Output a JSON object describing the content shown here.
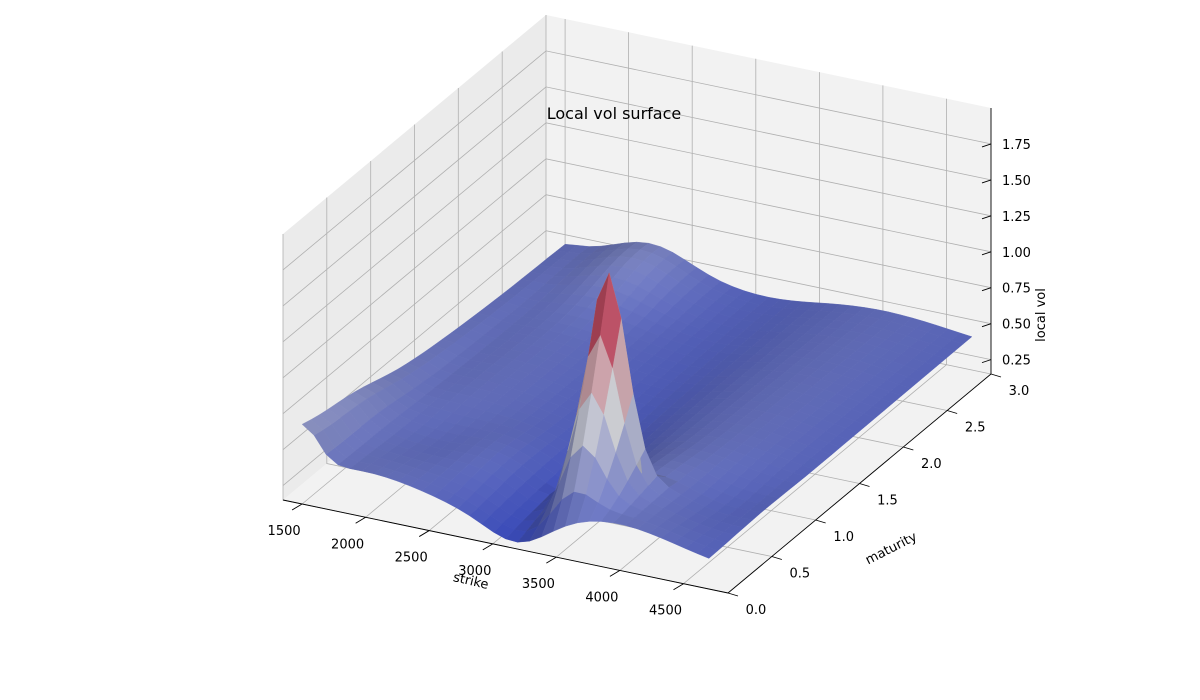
{
  "chart_data": {
    "type": "surface3d",
    "title": "Local vol surface",
    "xlabel": "strike",
    "ylabel": "maturity",
    "zlabel": "local vol",
    "x_ticks": [
      "1500",
      "2000",
      "2500",
      "3000",
      "3500",
      "4000",
      "4500"
    ],
    "y_ticks": [
      "0.0",
      "0.5",
      "1.0",
      "1.5",
      "2.0",
      "2.5",
      "3.0"
    ],
    "z_ticks": [
      "0.25",
      "0.50",
      "0.75",
      "1.00",
      "1.25",
      "1.50",
      "1.75"
    ],
    "xlim": [
      1350,
      4850
    ],
    "ylim": [
      0,
      3.0
    ],
    "zlim": [
      0.15,
      2.0
    ],
    "grid": true,
    "colormap": "coolwarm",
    "colormap_low": "#3b4cc0",
    "colormap_mid": "#dddddd",
    "colormap_high": "#b40426",
    "surface_shape": {
      "base_level": 0.4,
      "valley_strike": 3200,
      "spike_strike": 3550,
      "spike_peak": 1.95,
      "spike_maturity_range": [
        0,
        0.5
      ],
      "notes_in_values_only": true
    }
  }
}
